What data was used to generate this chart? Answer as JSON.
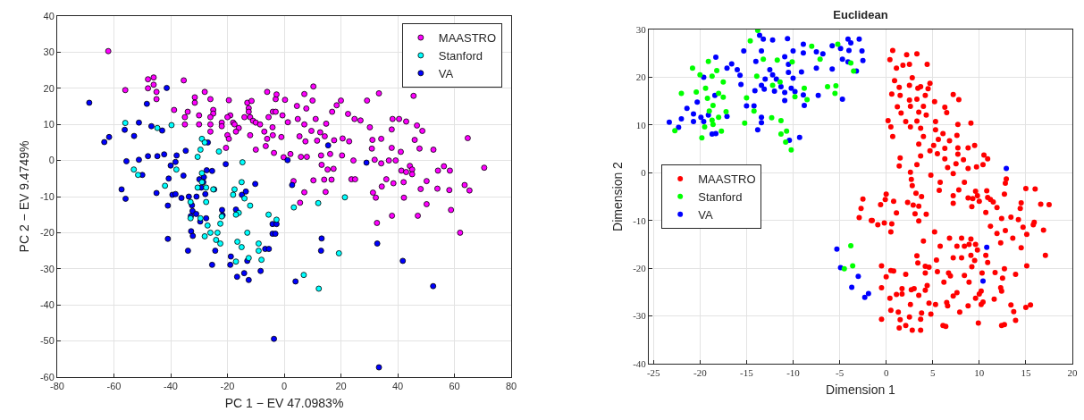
{
  "chart_data": [
    {
      "type": "scatter",
      "xlabel": "PC 1 − EV 47.0983%",
      "ylabel": "PC 2 − EV 9.4749%",
      "xlim": [
        -80,
        80
      ],
      "ylim": [
        -60,
        40
      ],
      "xticks": [
        -80,
        -60,
        -40,
        -20,
        0,
        20,
        40,
        60,
        80
      ],
      "yticks": [
        -60,
        -50,
        -40,
        -30,
        -20,
        -10,
        0,
        10,
        20,
        30,
        40
      ],
      "grid": true,
      "legend": "top right",
      "marker": "circle",
      "series": [
        {
          "name": "MAASTRO",
          "color": "#ff00ff",
          "x": [
            -62,
            -48,
            -46,
            -46,
            -48,
            -45,
            -45,
            -56,
            -35.4,
            -28,
            -26,
            -31.5,
            -31.5,
            -38.8,
            -34,
            -35,
            -35,
            -30,
            -30,
            -25,
            -25,
            -26,
            -26,
            -26,
            -22,
            -22,
            -19.5,
            -19,
            -20,
            -18,
            -17.5,
            -16,
            -17,
            -20,
            -19.5,
            -20.5,
            -13,
            -11.5,
            -12.5,
            -12.5,
            -12,
            -14,
            -11,
            -10,
            -8.5,
            -12,
            -10,
            -6.5,
            -6,
            -3,
            -5.5,
            -4,
            -7,
            -6,
            -4,
            -2.7,
            7.1,
            10.3,
            0.3,
            4.5,
            10,
            7.8,
            20,
            18.5,
            29.2,
            33.4,
            45.6,
            -3,
            -0.6,
            1.3,
            -4.1,
            -1,
            -3.6,
            -0.2,
            2.2,
            4.8,
            7.1,
            11.1,
            9.6,
            12.7,
            14.8,
            16.9,
            22.5,
            24.8,
            26.9,
            30.2,
            5.4,
            7.5,
            11.6,
            14.3,
            17.6,
            20.6,
            22.9,
            5.9,
            8,
            13,
            16.2,
            20.4,
            15.3,
            17.4,
            13.2,
            24.4,
            31.1,
            34.2,
            37.9,
            38.2,
            40.5,
            43,
            46.8,
            48.7,
            46,
            47.7,
            52.6,
            41.1,
            37.9,
            39.3,
            30.9,
            31.9,
            34.2,
            36.9,
            41.3,
            44.3,
            45.1,
            45.1,
            43,
            54.2,
            56.3,
            58.4,
            70.5,
            64.7,
            63.6,
            65.3,
            58.2,
            54,
            48.1,
            50.2,
            42.1,
            38.5,
            36,
            34.4,
            31.3,
            32.3,
            42.2,
            50.2,
            58.8,
            47.1,
            38,
            32.7,
            62,
            10.3,
            14.1,
            16.7,
            23.7,
            25,
            3.3,
            7.1,
            14.6,
            5.6
          ],
          "values": [
            30.3,
            22.5,
            23,
            21,
            20,
            19,
            17,
            19.5,
            22.2,
            19,
            17,
            17.5,
            16,
            14,
            13.5,
            12,
            10,
            12.5,
            10,
            14,
            13,
            12,
            10,
            8,
            10.5,
            9.5,
            16.7,
            12.5,
            12,
            10.5,
            10,
            9,
            8,
            7,
            6,
            3.5,
            16,
            16.5,
            14.5,
            13.5,
            12,
            12,
            11,
            10.5,
            10,
            7,
            3,
            4,
            19,
            17,
            12,
            13.5,
            8,
            6,
            7,
            18.3,
            18.4,
            20.5,
            16.8,
            15.1,
            16.6,
            14.4,
            16.6,
            15.3,
            16.6,
            18.6,
            17.9,
            13.5,
            12.5,
            10.6,
            9.2,
            6.5,
            2.1,
            0.9,
            1.8,
            11.5,
            10,
            11.5,
            8.2,
            7.8,
            10.2,
            13.5,
            12.9,
            11.5,
            11.1,
            9.2,
            6.7,
            5.3,
            5.5,
            6.7,
            5.6,
            6.1,
            5.3,
            1,
            1,
            1.4,
            1.8,
            1.4,
            -2.5,
            -2.3,
            -1.2,
            0,
            5.7,
            6,
            8.6,
            11.5,
            11.5,
            10.8,
            9.7,
            8.2,
            5.7,
            3.3,
            3,
            2.4,
            3.5,
            0,
            3.3,
            0.2,
            -0.8,
            0,
            -2.8,
            -1.5,
            -2.5,
            -3.8,
            -3.2,
            -2.8,
            -1.6,
            -2.8,
            -2,
            6.2,
            -6.8,
            -8.3,
            -8.2,
            -7.8,
            -7.9,
            -5.7,
            -6,
            -6.3,
            -5.2,
            -7.2,
            -8.9,
            -10.3,
            -10.3,
            -12.1,
            -13.7,
            -15.3,
            -15.3,
            -17.3,
            -20,
            -5.5,
            -5.3,
            -5.3,
            -5.2,
            -5.2,
            -5.7,
            -8.8,
            -8.7,
            -11.7
          ]
        },
        {
          "name": "Stanford",
          "color": "#00ffff",
          "x": [
            -56,
            -39.7,
            -44.7,
            -29,
            -28,
            -29.5,
            -30.5,
            -53,
            -51.5,
            -38,
            -42,
            -29,
            -29,
            -30.5,
            -27.5,
            -25,
            -23,
            -14.7,
            -15,
            -17.5,
            -18,
            -14,
            -12,
            -16,
            -17,
            -33,
            -33,
            -29.5,
            -27.5,
            -27,
            -26,
            -28,
            -23.5,
            -24,
            -22.5,
            -22.5,
            -22,
            -13,
            -16.5,
            -15,
            -9,
            -9,
            -8,
            -17,
            -12.5,
            -5.5,
            -2.7,
            3.4,
            12,
            21.4,
            19.3,
            6.9,
            12.2
          ],
          "values": [
            10.4,
            9.8,
            9,
            6,
            5,
            3,
            1,
            -2.5,
            -4,
            -2.5,
            -7,
            -3.5,
            -6,
            -7.5,
            -7.5,
            -8,
            2.5,
            -0.5,
            -6,
            -8,
            -9.5,
            -10.5,
            -12.5,
            -14.5,
            -15,
            -11.5,
            -16,
            -16,
            -11.5,
            -18,
            -20,
            -21,
            -20,
            -22,
            -23,
            -17.5,
            -15.5,
            -20,
            -22.5,
            -24,
            -23,
            -25,
            -27.5,
            -28,
            -27,
            -15,
            -16.4,
            -13,
            -11.8,
            -10.2,
            -25.7,
            -31.7,
            -35.5
          ]
        },
        {
          "name": "VA",
          "color": "#0000ff",
          "x": [
            -68.7,
            -41.4,
            -48.4,
            -63.4,
            -61.7,
            -56.2,
            -51.2,
            -46.8,
            -43,
            -52.9,
            -55.6,
            -51.2,
            -48,
            -44.7,
            -42.3,
            -50,
            -57.3,
            -55.9,
            -45,
            -41,
            -41,
            -33.9,
            -37.9,
            -40,
            -38.3,
            -40.7,
            -35.5,
            -34.7,
            -27.3,
            -25.4,
            -29.9,
            -28.3,
            -28.5,
            -29.2,
            -39.4,
            -38.3,
            -36.2,
            -33.6,
            -30.9,
            -27.8,
            -24.7,
            -32.5,
            -32.3,
            -31,
            -32.9,
            -29.6,
            -27.5,
            -32.8,
            -32.2,
            -21.9,
            -21.7,
            -17,
            -14.9,
            -13.5,
            -10.2,
            -24.3,
            -25.4,
            -18.8,
            -19,
            -13,
            -16.6,
            -14.1,
            -12.5,
            -8.3,
            -6.7,
            -4.1,
            -4.1,
            -20.6,
            -26.9,
            1.2,
            15.5,
            29,
            2.8,
            -2.7,
            -3.1,
            -5.4,
            13.2,
            13,
            32.8,
            41.8,
            4,
            52.5,
            -3.6,
            33.4
          ],
          "values": [
            16,
            20.1,
            15.7,
            5.1,
            6.5,
            8.5,
            10.5,
            9.5,
            8.3,
            6.8,
            -0.2,
            0.2,
            1.2,
            1.2,
            1.7,
            -4,
            -8,
            -10.6,
            -9,
            -12.5,
            -21.7,
            -25,
            1.4,
            -1.4,
            -0.4,
            -5,
            -4.2,
            2.7,
            -2.7,
            -2.9,
            -5.2,
            -4.6,
            -6,
            -7.5,
            -9.5,
            -9.3,
            -10.4,
            -10,
            -10,
            -9.3,
            -8,
            -12.4,
            -14,
            -14.8,
            -15.4,
            -16.9,
            -16,
            -19.6,
            -20.9,
            -13.7,
            -15.2,
            -13.6,
            -9.5,
            -8.6,
            -6.5,
            -25,
            -28.9,
            -26.6,
            -28.9,
            -27.8,
            -32.2,
            -31.2,
            -33.1,
            -30.6,
            -24.5,
            -17.6,
            -20.3,
            -1,
            5,
            0.1,
            4.2,
            -0.6,
            -6.8,
            -17.6,
            -20.3,
            -24.5,
            -21.6,
            -25,
            -23,
            -27.8,
            -33.5,
            -34.8,
            -49.4,
            -57.3
          ]
        }
      ]
    },
    {
      "type": "scatter",
      "title": "Euclidean",
      "xlabel": "Dimension 1",
      "ylabel": "Dimension 2",
      "xlim": [
        -25.5,
        20
      ],
      "ylim": [
        -40,
        30
      ],
      "xticks": [
        -25,
        -20,
        -15,
        -10,
        -5,
        0,
        5,
        10,
        15,
        20
      ],
      "yticks": [
        -40,
        -30,
        -20,
        -10,
        0,
        10,
        20,
        30
      ],
      "grid": true,
      "legend": "left",
      "marker": "circle",
      "series": [
        {
          "name": "MAASTRO",
          "color": "#ff0000",
          "x": [
            -2.5,
            -2.7,
            -2.9,
            -1.6,
            0.7,
            0.4,
            1.1,
            1.8,
            2.2,
            3.3,
            2.5,
            4.4,
            0.9,
            1.4,
            0.6,
            1.5,
            2.8,
            2.5,
            3.4,
            3.7,
            4.5,
            4.7,
            4.2,
            3.3,
            2.5,
            2.6,
            1.2,
            4,
            5.2,
            1.6,
            3.5,
            4.3,
            2.1,
            3.3,
            5.3,
            0.2,
            0.5,
            2.6,
            3.7,
            0.7,
            3.5,
            4,
            7.2,
            7.8,
            6.3,
            6.5,
            7.7,
            9.1,
            5.3,
            6.1,
            6.8,
            7.6,
            5.6,
            5.1,
            4.7,
            5.5,
            3.7,
            3.3,
            6.3,
            7.7,
            7.7,
            6.3,
            6.6,
            7.2,
            7.5,
            8.3,
            8.8,
            9.5,
            8.8,
            9.7,
            10.4,
            10.5,
            10.9,
            1.5,
            1.4,
            2.6,
            2.7,
            2.8,
            4.8,
            5.8,
            5.7,
            3.2,
            3.8,
            2.9,
            2.3,
            3.1,
            3.5,
            4.3,
            3.5,
            0,
            -0.1,
            -0.6,
            0.8,
            1.1,
            -1.5,
            -0.9,
            -0.2,
            0.6,
            0.5,
            7.2,
            7.8,
            7.2,
            8.4,
            8.8,
            9.3,
            10,
            9.2,
            9.6,
            9.8,
            10.8,
            10.9,
            11.2,
            11.5,
            11.9,
            10.7,
            11.2,
            12.7,
            12.9,
            12.8,
            15,
            16,
            14.5,
            14.4,
            16.6,
            17.5,
            12.4,
            13.4,
            14.2,
            15.9,
            15.8,
            14.7,
            16.9,
            15.1,
            12.8,
            11.9,
            13.6,
            12.3,
            14.5,
            17.1,
            15.1,
            13.9,
            12.7,
            12.5,
            11.7,
            12.3,
            12.4,
            11.6,
            13.4,
            13.7,
            13.9,
            15,
            15.5,
            12.4,
            12.7,
            9.9,
            10.2,
            10.4,
            10,
            10.2,
            9.6,
            8.8,
            10.3,
            10.7,
            10.9,
            9.2,
            9.5,
            9.1,
            8.4,
            8.9,
            8.9,
            9.6,
            9.8,
            9.1,
            8.1,
            8.4,
            7.6,
            7.2,
            8.1,
            6.8,
            5.8,
            5.2,
            4,
            3.3,
            3.4,
            4.6,
            4.2,
            5.4,
            5.5,
            6.7,
            6.9,
            6.2,
            7.2,
            7.6,
            6.5,
            6.6,
            7.9,
            5.3,
            4.6,
            3.8,
            4.8,
            3.7,
            6.1,
            6.4,
            4.2,
            4.4,
            3.5,
            2.7,
            3,
            1.7,
            1.1,
            1.7,
            0.4,
            0.5,
            1.3,
            1.5,
            1.4,
            2.1,
            2.8,
            3.7,
            2.5,
            2.6,
            -0.5,
            -0.5,
            0,
            0.5,
            0.8,
            -0.5,
            2.1,
            4.2
          ],
          "values": [
            -5.5,
            -7.5,
            -9.4,
            -10,
            25.6,
            23.7,
            21.9,
            22.5,
            24.7,
            24.9,
            22.7,
            22.7,
            19.3,
            17.9,
            16.5,
            16.2,
            19.9,
            18.3,
            17.7,
            18,
            17.6,
            18.7,
            16.2,
            15.4,
            15.2,
            13.9,
            13.8,
            13.9,
            14.9,
            12.5,
            12.7,
            12.1,
            10.7,
            10.8,
            10.7,
            10.9,
            9.6,
            9.6,
            9.3,
            7.6,
            6,
            7.6,
            16.4,
            15.3,
            13.7,
            12.6,
            10.1,
            10.4,
            9,
            8.2,
            6.7,
            7.8,
            7,
            5.7,
            4.6,
            4,
            3.5,
            1.7,
            5.1,
            5.2,
            3.9,
            2.9,
            1.1,
            -0.2,
            1.9,
            2.7,
            5.2,
            5.7,
            0.9,
            1.2,
            1.7,
            3.7,
            2.9,
            3.1,
            1.4,
            0.1,
            -1.4,
            -2.7,
            -0.5,
            -2,
            -3.7,
            -4.3,
            -5,
            -6.8,
            -6.2,
            -8.6,
            -7,
            -8.7,
            -10.1,
            -4.5,
            -5.6,
            -6.7,
            -6,
            -8.4,
            -10,
            -10.9,
            -10.5,
            -10.7,
            -12.4,
            -4.8,
            -3.6,
            -6.4,
            -2,
            -5.3,
            -5.4,
            -6,
            -7.1,
            -3.9,
            -4.8,
            -3.8,
            -5.2,
            -5.6,
            -6.1,
            -7.3,
            -8.3,
            -11.2,
            -4.5,
            -1.3,
            -2.2,
            -3.3,
            -3.4,
            -6.3,
            -7.5,
            -6.6,
            -6.7,
            -9.6,
            -9.3,
            -9.8,
            -10.4,
            -10.9,
            -11.4,
            -12,
            -12.9,
            -12.1,
            -12.7,
            -13.7,
            -14.7,
            -15.7,
            -17.3,
            -19.5,
            -21.3,
            -20.1,
            -22.1,
            -20.9,
            -24.1,
            -24.8,
            -26.5,
            -27.7,
            -29.1,
            -30.9,
            -28.2,
            -27.7,
            -32,
            -31.8,
            -31.5,
            -27.6,
            -27.1,
            -25.4,
            -24.8,
            -26.3,
            -27.9,
            -21,
            -17.3,
            -18.8,
            -19.7,
            -18.4,
            -17.3,
            -21.5,
            -22.9,
            -15,
            -15,
            -16.2,
            -13.9,
            -13.7,
            -15.4,
            -15.4,
            -17.8,
            -17.8,
            -13.7,
            -15.4,
            -12.4,
            -14.3,
            -17.4,
            -18.9,
            -19.8,
            -21,
            -18.3,
            -20.7,
            -21,
            -21.6,
            -22.9,
            -25.8,
            -25.1,
            -27.2,
            -27.9,
            -29.2,
            -27.6,
            -27.3,
            -29.4,
            -29.6,
            -30.7,
            -32,
            -32.2,
            -24.6,
            -23.6,
            -25.7,
            -24.5,
            -24.3,
            -25.4,
            -25.5,
            -24.3,
            -26.3,
            -28.8,
            -29.2,
            -30.8,
            -32.5,
            -32,
            -33,
            -33,
            -30.2,
            -27.6,
            -30.7,
            -24.1,
            -21.8,
            -20.5,
            -20.6,
            -19.5,
            -21.3,
            -19.6
          ]
        },
        {
          "name": "Stanford",
          "color": "#00ff00",
          "x": [
            -22.7,
            -22,
            -20.8,
            -20.4,
            -20,
            -19.8,
            -19.5,
            -19.4,
            -19.1,
            -19.2,
            -19,
            -18.7,
            -18.6,
            -18.7,
            -18.6,
            -18.2,
            -18,
            -18,
            -17.7,
            -17.5,
            -17.5,
            -17.2,
            -15.2,
            -15,
            -14.2,
            -14.6,
            -13.8,
            -13.9,
            -13.2,
            -12.3,
            -12.2,
            -11.7,
            -11.4,
            -11.3,
            -11.3,
            -10.7,
            -10.8,
            -10.2,
            -10.1,
            -9.8,
            -8.8,
            -8.5,
            -8,
            -7.1,
            -6.3,
            -5.5,
            -5.4,
            -5.2,
            -3.8,
            -3.5,
            -3.8,
            -3.6,
            -4.5
          ],
          "values": [
            8.8,
            16.6,
            21.9,
            16.9,
            20.5,
            7.3,
            9.6,
            17.7,
            23.3,
            15.6,
            12.9,
            20.2,
            14.1,
            11,
            10.1,
            21.4,
            16.6,
            11.6,
            8.7,
            19,
            15.8,
            12.8,
            10.4,
            15.7,
            12.9,
            27.6,
            29.8,
            20.2,
            23.8,
            11.5,
            18.3,
            23.6,
            19,
            10.9,
            8.1,
            8.7,
            6.4,
            4.8,
            23.2,
            15.9,
            17.7,
            15.3,
            26.5,
            23.8,
            18,
            16.6,
            18.2,
            26.9,
            23,
            21.3,
            -15.3,
            -19.5,
            -20.1
          ]
        },
        {
          "name": "VA",
          "color": "#0000ff",
          "x": [
            -23.3,
            -22.3,
            -22,
            -21.4,
            -20.7,
            -20.7,
            -20.3,
            -19.9,
            -19.6,
            -19.6,
            -19.1,
            -18.7,
            -18.3,
            -18.4,
            -18.3,
            -17.1,
            -17.1,
            -16.6,
            -16,
            -15.7,
            -15.6,
            -15.3,
            -15,
            -14.2,
            -14,
            -14.1,
            -13.8,
            -13.6,
            -13.4,
            -13.4,
            -13.4,
            -13.4,
            -13.2,
            -13.1,
            -13,
            -12.5,
            -12.2,
            -12.2,
            -12,
            -11.8,
            -11.3,
            -10.9,
            -10.9,
            -10.9,
            -10.6,
            -10.5,
            -10.5,
            -10.4,
            -10,
            -10,
            -10.2,
            -9.8,
            -9.3,
            -9.1,
            -8.9,
            -8.9,
            -8.9,
            -8.8,
            -7.5,
            -7.5,
            -7.3,
            -6.8,
            -5.8,
            -5.8,
            -4.9,
            -4.7,
            -4.7,
            -4.1,
            -4,
            -4.1,
            -3.8,
            -3.2,
            -2.9,
            -2.6,
            -2.5,
            -5.3,
            -4.9,
            -3.7,
            -3,
            -2.3,
            -1.9,
            12.9,
            10.8,
            10.4
          ],
          "values": [
            10.6,
            9.5,
            11.3,
            13.5,
            12.3,
            10.7,
            14.8,
            11.6,
            10.7,
            20,
            12.1,
            8.1,
            8.2,
            16.2,
            24.2,
            11.8,
            21.9,
            22.8,
            21.6,
            20.4,
            18.5,
            25.5,
            14,
            14,
            23.3,
            17.2,
            9,
            28.8,
            25.5,
            18.3,
            11.6,
            10.5,
            28,
            17.5,
            19.6,
            21.6,
            20.5,
            27.8,
            17.1,
            19.6,
            18,
            24.3,
            16.8,
            15.1,
            28.1,
            22.7,
            21,
            6.8,
            25.5,
            19.8,
            17.7,
            17,
            7.4,
            21.1,
            25.1,
            26.9,
            16.3,
            14.1,
            25.3,
            21.9,
            16.2,
            24.9,
            26.6,
            21.7,
            26,
            23.8,
            15.4,
            23.2,
            25.6,
            28,
            27.2,
            21.3,
            28,
            25.5,
            23.5,
            -16,
            -19.9,
            -24,
            -21.7,
            -26.1,
            -25.3,
            0.9,
            -15.6,
            -22.7
          ]
        }
      ]
    }
  ]
}
